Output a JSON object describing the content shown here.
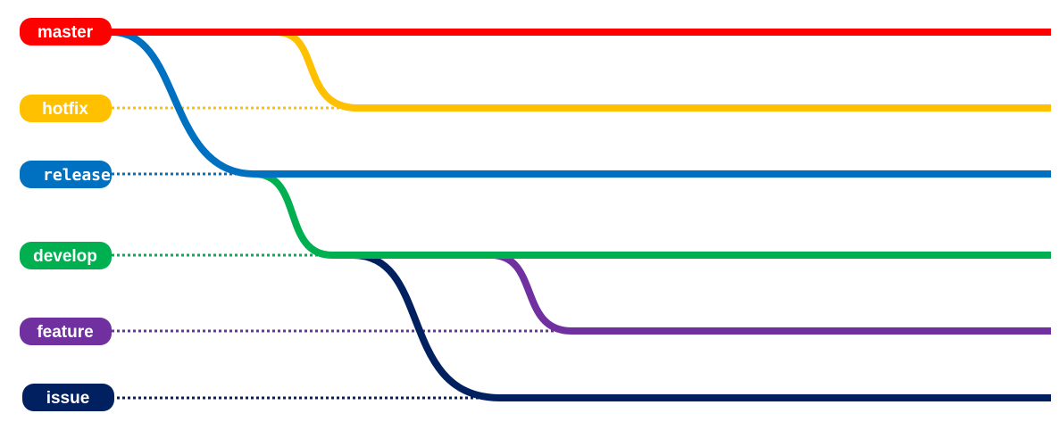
{
  "branches": [
    {
      "key": "master",
      "label": "master",
      "color": "#ff0000"
    },
    {
      "key": "hotfix",
      "label": "hotfix",
      "color": "#ffc000"
    },
    {
      "key": "release",
      "label": "release",
      "color": "#0070c0"
    },
    {
      "key": "develop",
      "label": "develop",
      "color": "#00b050"
    },
    {
      "key": "feature",
      "label": "feature",
      "color": "#7030a0"
    },
    {
      "key": "issue",
      "label": "issue",
      "color": "#002060"
    }
  ]
}
